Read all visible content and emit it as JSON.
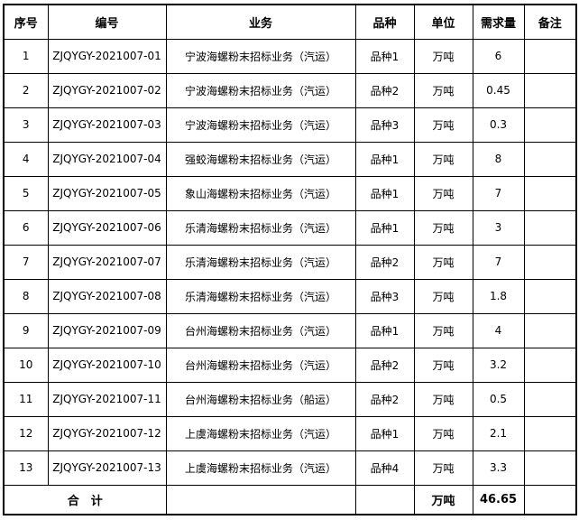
{
  "colors": {
    "background": "#ffffff",
    "border": "#000000",
    "text": "#000000"
  },
  "table": {
    "headers": [
      "序号",
      "编号",
      "业务",
      "品种",
      "单位",
      "需求量",
      "备注"
    ],
    "rows": [
      {
        "no": "1",
        "code": "ZJQYGY-2021007-01",
        "business": "宁波海螺粉末招标业务（汽运）",
        "variety": "品种1",
        "unit": "万吨",
        "demand": "6",
        "remark": ""
      },
      {
        "no": "2",
        "code": "ZJQYGY-2021007-02",
        "business": "宁波海螺粉末招标业务（汽运）",
        "variety": "品种2",
        "unit": "万吨",
        "demand": "0.45",
        "remark": ""
      },
      {
        "no": "3",
        "code": "ZJQYGY-2021007-03",
        "business": "宁波海螺粉末招标业务（汽运）",
        "variety": "品种3",
        "unit": "万吨",
        "demand": "0.3",
        "remark": ""
      },
      {
        "no": "4",
        "code": "ZJQYGY-2021007-04",
        "business": "强蛟海螺粉末招标业务（汽运）",
        "variety": "品种1",
        "unit": "万吨",
        "demand": "8",
        "remark": ""
      },
      {
        "no": "5",
        "code": "ZJQYGY-2021007-05",
        "business": "象山海螺粉末招标业务（汽运）",
        "variety": "品种1",
        "unit": "万吨",
        "demand": "7",
        "remark": ""
      },
      {
        "no": "6",
        "code": "ZJQYGY-2021007-06",
        "business": "乐清海螺粉末招标业务（汽运）",
        "variety": "品种1",
        "unit": "万吨",
        "demand": "3",
        "remark": ""
      },
      {
        "no": "7",
        "code": "ZJQYGY-2021007-07",
        "business": "乐清海螺粉末招标业务（汽运）",
        "variety": "品种2",
        "unit": "万吨",
        "demand": "7",
        "remark": ""
      },
      {
        "no": "8",
        "code": "ZJQYGY-2021007-08",
        "business": "乐清海螺粉末招标业务（汽运）",
        "variety": "品种3",
        "unit": "万吨",
        "demand": "1.8",
        "remark": ""
      },
      {
        "no": "9",
        "code": "ZJQYGY-2021007-09",
        "business": "台州海螺粉末招标业务（汽运）",
        "variety": "品种1",
        "unit": "万吨",
        "demand": "4",
        "remark": ""
      },
      {
        "no": "10",
        "code": "ZJQYGY-2021007-10",
        "business": "台州海螺粉末招标业务（汽运）",
        "variety": "品种2",
        "unit": "万吨",
        "demand": "3.2",
        "remark": ""
      },
      {
        "no": "11",
        "code": "ZJQYGY-2021007-11",
        "business": "台州海螺粉末招标业务（船运）",
        "variety": "品种2",
        "unit": "万吨",
        "demand": "0.5",
        "remark": ""
      },
      {
        "no": "12",
        "code": "ZJQYGY-2021007-12",
        "business": "上虞海螺粉末招标业务（汽运）",
        "variety": "品种1",
        "unit": "万吨",
        "demand": "2.1",
        "remark": ""
      },
      {
        "no": "13",
        "code": "ZJQYGY-2021007-13",
        "business": "上虞海螺粉末招标业务（汽运）",
        "variety": "品种4",
        "unit": "万吨",
        "demand": "3.3",
        "remark": ""
      }
    ],
    "total_row": {
      "label": "合　计",
      "business": "",
      "variety": "",
      "unit": "万吨",
      "demand": "46.65",
      "remark": ""
    }
  }
}
